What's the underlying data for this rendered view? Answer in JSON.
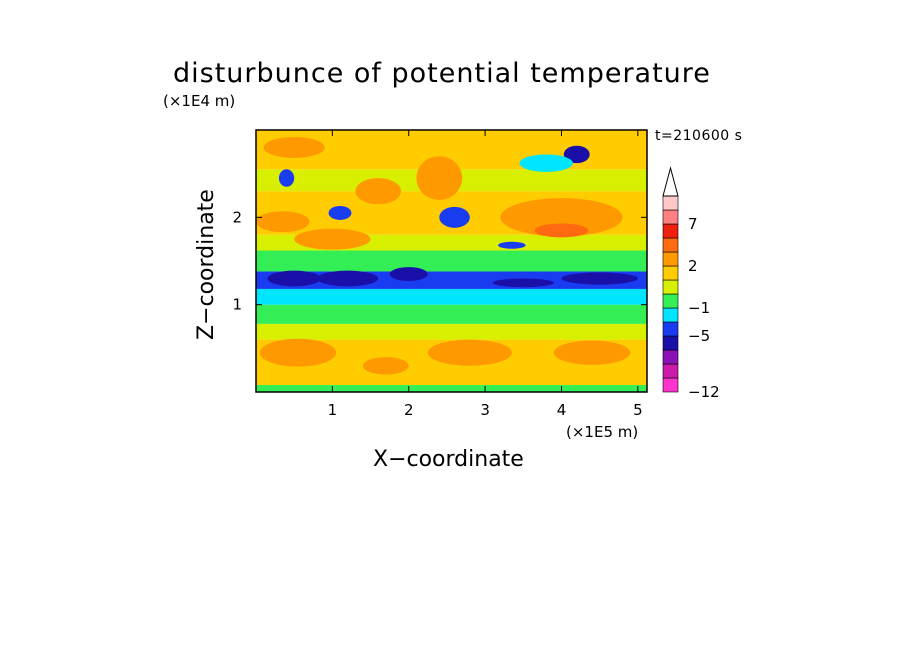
{
  "chart_data": {
    "type": "heatmap",
    "title": "disturbunce of potential temperature",
    "time_label": "t=210600 s",
    "xlabel": "X−coordinate",
    "ylabel": "Z−coordinate",
    "x_unit": "(×1E5 m)",
    "y_unit": "(×1E4 m)",
    "xlim": [
      0,
      5.12
    ],
    "ylim": [
      0,
      3.0
    ],
    "x_ticks": [
      {
        "value": 1,
        "label": "1"
      },
      {
        "value": 2,
        "label": "2"
      },
      {
        "value": 3,
        "label": "3"
      },
      {
        "value": 4,
        "label": "4"
      },
      {
        "value": 5,
        "label": "5"
      }
    ],
    "y_ticks": [
      {
        "value": 1,
        "label": "1"
      },
      {
        "value": 2,
        "label": "2"
      }
    ],
    "colorbar": {
      "levels": [
        {
          "color": "#ff33cc"
        },
        {
          "color": "#cc1aaa"
        },
        {
          "color": "#8a10b8"
        },
        {
          "color": "#1a0fa8"
        },
        {
          "color": "#1a3cf0"
        },
        {
          "color": "#00e5ff"
        },
        {
          "color": "#33ee55"
        },
        {
          "color": "#d8f000"
        },
        {
          "color": "#ffcc00"
        },
        {
          "color": "#ff9900"
        },
        {
          "color": "#ff6a10"
        },
        {
          "color": "#f02010"
        },
        {
          "color": "#ff8080"
        },
        {
          "color": "#ffc8c8"
        }
      ],
      "labels": [
        "−12",
        "−5",
        "−1",
        "2",
        "7"
      ],
      "extend": "max"
    },
    "bands": [
      {
        "z0": 0.0,
        "z1": 0.08,
        "level": 6
      },
      {
        "z0": 0.08,
        "z1": 0.6,
        "level": 8
      },
      {
        "z0": 0.6,
        "z1": 0.78,
        "level": 7
      },
      {
        "z0": 0.78,
        "z1": 1.0,
        "level": 6
      },
      {
        "z0": 1.0,
        "z1": 1.18,
        "level": 5
      },
      {
        "z0": 1.18,
        "z1": 1.38,
        "level": 4
      },
      {
        "z0": 1.38,
        "z1": 1.62,
        "level": 6
      },
      {
        "z0": 1.62,
        "z1": 1.8,
        "level": 7
      },
      {
        "z0": 1.8,
        "z1": 2.3,
        "level": 8
      },
      {
        "z0": 2.3,
        "z1": 2.55,
        "level": 7
      },
      {
        "z0": 2.55,
        "z1": 3.0,
        "level": 8
      }
    ],
    "features": [
      {
        "x": 0.55,
        "z": 0.45,
        "rx": 0.5,
        "rz": 0.16,
        "level": 9
      },
      {
        "x": 2.8,
        "z": 0.45,
        "rx": 0.55,
        "rz": 0.15,
        "level": 9
      },
      {
        "x": 4.4,
        "z": 0.45,
        "rx": 0.5,
        "rz": 0.14,
        "level": 9
      },
      {
        "x": 1.7,
        "z": 0.3,
        "rx": 0.3,
        "rz": 0.1,
        "level": 9
      },
      {
        "x": 0.5,
        "z": 1.3,
        "rx": 0.35,
        "rz": 0.09,
        "level": 3
      },
      {
        "x": 1.2,
        "z": 1.3,
        "rx": 0.4,
        "rz": 0.09,
        "level": 3
      },
      {
        "x": 2.0,
        "z": 1.35,
        "rx": 0.25,
        "rz": 0.08,
        "level": 3
      },
      {
        "x": 4.5,
        "z": 1.3,
        "rx": 0.5,
        "rz": 0.07,
        "level": 3
      },
      {
        "x": 3.5,
        "z": 1.25,
        "rx": 0.4,
        "rz": 0.05,
        "level": 3
      },
      {
        "x": 0.35,
        "z": 1.95,
        "rx": 0.35,
        "rz": 0.12,
        "level": 9
      },
      {
        "x": 1.0,
        "z": 1.75,
        "rx": 0.5,
        "rz": 0.12,
        "level": 9
      },
      {
        "x": 4.0,
        "z": 2.0,
        "rx": 0.8,
        "rz": 0.22,
        "level": 9
      },
      {
        "x": 4.0,
        "z": 1.85,
        "rx": 0.35,
        "rz": 0.08,
        "level": 10
      },
      {
        "x": 1.1,
        "z": 2.05,
        "rx": 0.15,
        "rz": 0.08,
        "level": 4
      },
      {
        "x": 0.4,
        "z": 2.45,
        "rx": 0.1,
        "rz": 0.1,
        "level": 4
      },
      {
        "x": 3.35,
        "z": 1.68,
        "rx": 0.18,
        "rz": 0.04,
        "level": 4
      },
      {
        "x": 4.2,
        "z": 2.72,
        "rx": 0.17,
        "rz": 0.1,
        "level": 3
      },
      {
        "x": 3.8,
        "z": 2.62,
        "rx": 0.35,
        "rz": 0.1,
        "level": 5
      },
      {
        "x": 0.5,
        "z": 2.8,
        "rx": 0.4,
        "rz": 0.12,
        "level": 9
      },
      {
        "x": 2.4,
        "z": 2.45,
        "rx": 0.3,
        "rz": 0.25,
        "level": 9
      },
      {
        "x": 1.6,
        "z": 2.3,
        "rx": 0.3,
        "rz": 0.15,
        "level": 9
      },
      {
        "x": 2.6,
        "z": 2.0,
        "rx": 0.2,
        "rz": 0.12,
        "level": 4
      }
    ]
  }
}
